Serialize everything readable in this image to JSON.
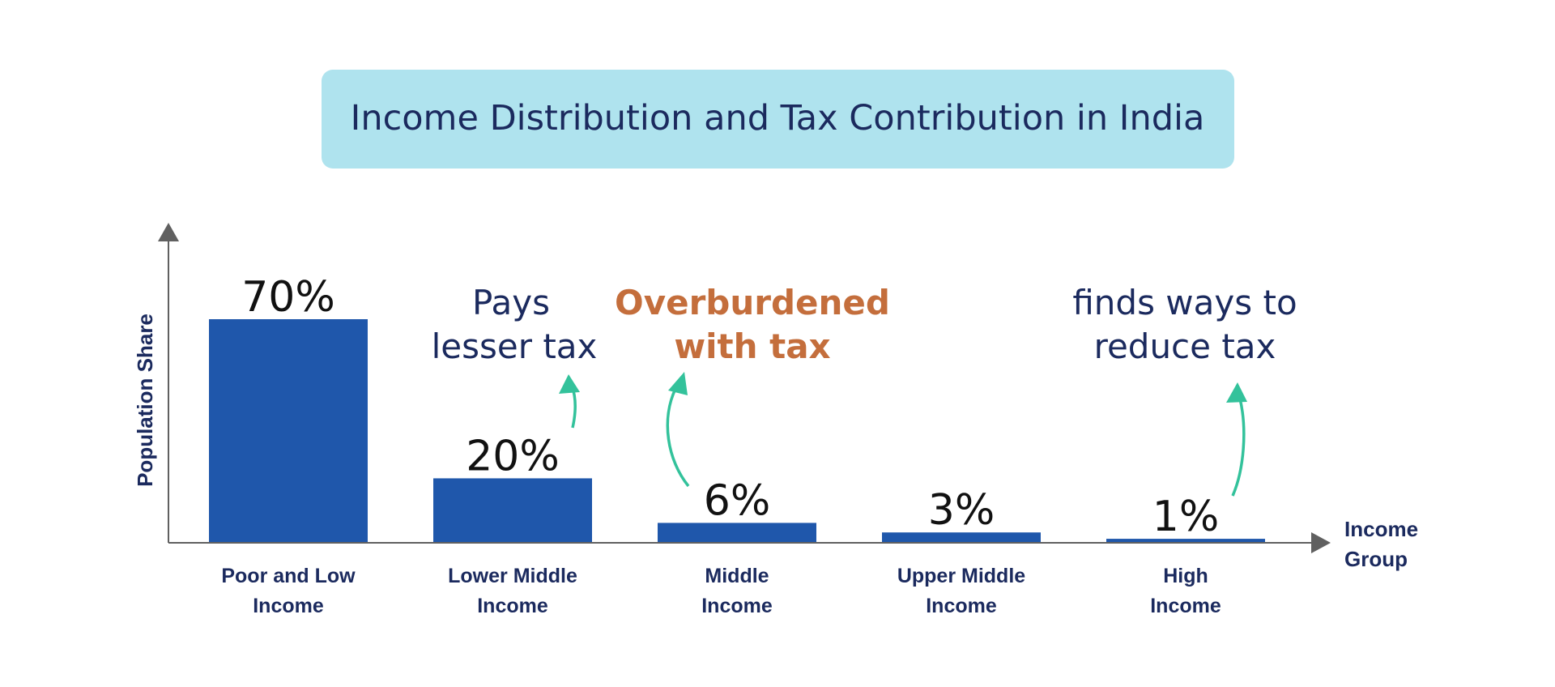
{
  "title": "Income Distribution and Tax Contribution in India",
  "colors": {
    "title_box": "#afe3ee",
    "title_text": "#1b2a5e",
    "bar": "#1f57ab",
    "axis": "#606060",
    "arrow": "#33c29b",
    "highlight": "#c46e3c",
    "label_text": "#1b2a5e"
  },
  "chart_data": {
    "type": "bar",
    "title": "Income Distribution and Tax Contribution in India",
    "ylabel": "Population Share",
    "xlabel": "Income Group",
    "xlabel_lines": [
      "Income",
      "Group"
    ],
    "categories": [
      [
        "Poor and Low",
        "Income"
      ],
      [
        "Lower Middle",
        "Income"
      ],
      [
        "Middle",
        "Income"
      ],
      [
        "Upper Middle",
        "Income"
      ],
      [
        "High",
        "Income"
      ]
    ],
    "values": [
      70,
      20,
      6,
      3,
      1
    ],
    "value_labels": [
      "70%",
      "20%",
      "6%",
      "3%",
      "1%"
    ],
    "ylim": [
      0,
      70
    ],
    "grid": false,
    "legend": "none",
    "annotations": [
      {
        "lines": [
          "Pays",
          "lesser tax"
        ],
        "style": "normal",
        "category_index": 1
      },
      {
        "lines": [
          "Overburdened",
          "with tax"
        ],
        "style": "highlight",
        "category_index": 2
      },
      {
        "lines": [
          "finds ways to",
          "reduce tax"
        ],
        "style": "normal",
        "category_index": 4
      }
    ]
  }
}
